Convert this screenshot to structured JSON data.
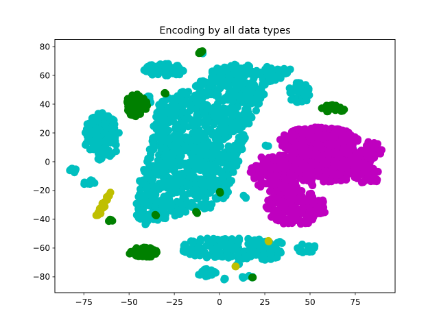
{
  "chart_data": {
    "type": "scatter",
    "title": "Encoding by all data types",
    "xlabel": "",
    "ylabel": "",
    "xlim": [
      -91,
      97
    ],
    "ylim": [
      -91,
      85
    ],
    "xticks": [
      -75,
      -50,
      -25,
      0,
      25,
      50,
      75
    ],
    "yticks": [
      -80,
      -60,
      -40,
      -20,
      0,
      20,
      40,
      60,
      80
    ],
    "grid": false,
    "legend": "none",
    "colors": {
      "cyan": "#00bfbf",
      "magenta": "#bf00bf",
      "green": "#008000",
      "yellow": "#bfbf00"
    },
    "series": [
      {
        "color": "#00bfbf",
        "clusters": [
          {
            "shape": "poly",
            "count": 1100,
            "poly": [
              [
                -30,
                44
              ],
              [
                -22,
                48
              ],
              [
                -14,
                52
              ],
              [
                -6,
                62
              ],
              [
                0,
                66
              ],
              [
                8,
                68
              ],
              [
                20,
                67
              ],
              [
                32,
                66
              ],
              [
                40,
                64
              ],
              [
                34,
                58
              ],
              [
                26,
                50
              ],
              [
                22,
                40
              ],
              [
                18,
                30
              ],
              [
                15,
                18
              ],
              [
                12,
                6
              ],
              [
                8,
                -12
              ],
              [
                4,
                -24
              ],
              [
                -4,
                -32
              ],
              [
                -14,
                -34
              ],
              [
                -24,
                -38
              ],
              [
                -34,
                -42
              ],
              [
                -42,
                -44
              ],
              [
                -46,
                -40
              ],
              [
                -46,
                -28
              ],
              [
                -44,
                -12
              ],
              [
                -40,
                0
              ],
              [
                -38,
                14
              ],
              [
                -36,
                30
              ],
              [
                -34,
                40
              ]
            ]
          },
          {
            "shape": "ellipse",
            "count": 110,
            "cx": -65,
            "cy": 17,
            "rx": 10,
            "ry": 17
          },
          {
            "shape": "ellipse",
            "count": 70,
            "cx": -30,
            "cy": 64,
            "rx": 12,
            "ry": 4.5
          },
          {
            "shape": "ellipse",
            "count": 45,
            "cx": 44,
            "cy": 48,
            "rx": 6,
            "ry": 8
          },
          {
            "shape": "ellipse",
            "count": 150,
            "cx": 5,
            "cy": -60,
            "rx": 26,
            "ry": 8
          },
          {
            "shape": "ellipse",
            "count": 35,
            "cx": 27,
            "cy": -64,
            "rx": 7,
            "ry": 5
          },
          {
            "shape": "ellipse",
            "count": 22,
            "cx": -7,
            "cy": -77,
            "rx": 6,
            "ry": 3
          },
          {
            "shape": "ellipse",
            "count": 20,
            "cx": 48,
            "cy": -60,
            "rx": 5,
            "ry": 3.5
          },
          {
            "shape": "ellipse",
            "count": 8,
            "cx": -80,
            "cy": -6,
            "rx": 4,
            "ry": 1.5
          },
          {
            "shape": "ellipse",
            "count": 9,
            "cx": -72,
            "cy": -15,
            "rx": 3,
            "ry": 3
          },
          {
            "shape": "ellipse",
            "count": 8,
            "cx": -38,
            "cy": 44,
            "rx": 3,
            "ry": 3
          },
          {
            "shape": "ellipse",
            "count": 4,
            "cx": 33,
            "cy": -56,
            "rx": 2,
            "ry": 1
          },
          {
            "shape": "ellipse",
            "count": 4,
            "cx": 14,
            "cy": -80,
            "rx": 3,
            "ry": 2
          },
          {
            "shape": "ellipse",
            "count": 3,
            "cx": 10,
            "cy": -71,
            "rx": 1,
            "ry": 1
          },
          {
            "shape": "ellipse",
            "count": 3,
            "cx": 2,
            "cy": -82,
            "rx": 1.5,
            "ry": 1
          },
          {
            "shape": "ellipse",
            "count": 4,
            "cx": 73,
            "cy": 9,
            "rx": 1.5,
            "ry": 1.5
          },
          {
            "shape": "ellipse",
            "count": 4,
            "cx": 47,
            "cy": 20,
            "rx": 1.5,
            "ry": 1.5
          },
          {
            "shape": "ellipse",
            "count": 3,
            "cx": 26,
            "cy": 12,
            "rx": 1.5,
            "ry": 1.5
          },
          {
            "shape": "ellipse",
            "count": 3,
            "cx": 14,
            "cy": -24,
            "rx": 1.5,
            "ry": 1.5
          },
          {
            "shape": "ellipse",
            "count": 3,
            "cx": -10,
            "cy": 76,
            "rx": 1.5,
            "ry": 1
          },
          {
            "shape": "ellipse",
            "count": 3,
            "cx": 17,
            "cy": -80,
            "rx": 1.5,
            "ry": 1
          }
        ]
      },
      {
        "color": "#bf00bf",
        "clusters": [
          {
            "shape": "ellipse",
            "count": 350,
            "cx": 58,
            "cy": -2,
            "rx": 26,
            "ry": 12
          },
          {
            "shape": "ellipse",
            "count": 260,
            "cx": 55,
            "cy": 14,
            "rx": 22,
            "ry": 10
          },
          {
            "shape": "ellipse",
            "count": 200,
            "cx": 42,
            "cy": -32,
            "rx": 17,
            "ry": 12
          },
          {
            "shape": "ellipse",
            "count": 140,
            "cx": 30,
            "cy": -8,
            "rx": 14,
            "ry": 13
          },
          {
            "shape": "ellipse",
            "count": 40,
            "cx": 84,
            "cy": 8,
            "rx": 6,
            "ry": 6
          },
          {
            "shape": "ellipse",
            "count": 30,
            "cx": 82,
            "cy": -10,
            "rx": 7,
            "ry": 6
          },
          {
            "shape": "ellipse",
            "count": 25,
            "cx": 40,
            "cy": -14,
            "rx": 14,
            "ry": 6
          }
        ]
      },
      {
        "color": "#008000",
        "clusters": [
          {
            "shape": "ellipse",
            "count": 80,
            "cx": -46,
            "cy": 39,
            "rx": 6,
            "ry": 8
          },
          {
            "shape": "ellipse",
            "count": 45,
            "cx": -42,
            "cy": -63,
            "rx": 8,
            "ry": 3.5
          },
          {
            "shape": "ellipse",
            "count": 28,
            "cx": 63,
            "cy": 37,
            "rx": 7,
            "ry": 2.5
          },
          {
            "shape": "ellipse",
            "count": 5,
            "cx": -10,
            "cy": 76,
            "rx": 2,
            "ry": 1
          },
          {
            "shape": "ellipse",
            "count": 4,
            "cx": -60,
            "cy": -41,
            "rx": 1.5,
            "ry": 1
          },
          {
            "shape": "ellipse",
            "count": 3,
            "cx": -30,
            "cy": 48,
            "rx": 1,
            "ry": 1
          },
          {
            "shape": "ellipse",
            "count": 2,
            "cx": -35,
            "cy": -37,
            "rx": 1,
            "ry": 1
          },
          {
            "shape": "ellipse",
            "count": 2,
            "cx": 18,
            "cy": -80,
            "rx": 1,
            "ry": 0.5
          },
          {
            "shape": "ellipse",
            "count": 2,
            "cx": -13,
            "cy": -35,
            "rx": 1,
            "ry": 1
          },
          {
            "shape": "ellipse",
            "count": 2,
            "cx": 1,
            "cy": -21,
            "rx": 1,
            "ry": 1
          }
        ]
      },
      {
        "color": "#bfbf00",
        "clusters": [
          {
            "shape": "line",
            "count": 28,
            "x0": -68,
            "y0": -39,
            "x1": -61,
            "y1": -22,
            "spread": 2.2
          },
          {
            "shape": "ellipse",
            "count": 2,
            "cx": 27,
            "cy": -55,
            "rx": 0.5,
            "ry": 0.5
          },
          {
            "shape": "ellipse",
            "count": 2,
            "cx": 9,
            "cy": -73,
            "rx": 0.5,
            "ry": 0.5
          }
        ]
      }
    ]
  }
}
